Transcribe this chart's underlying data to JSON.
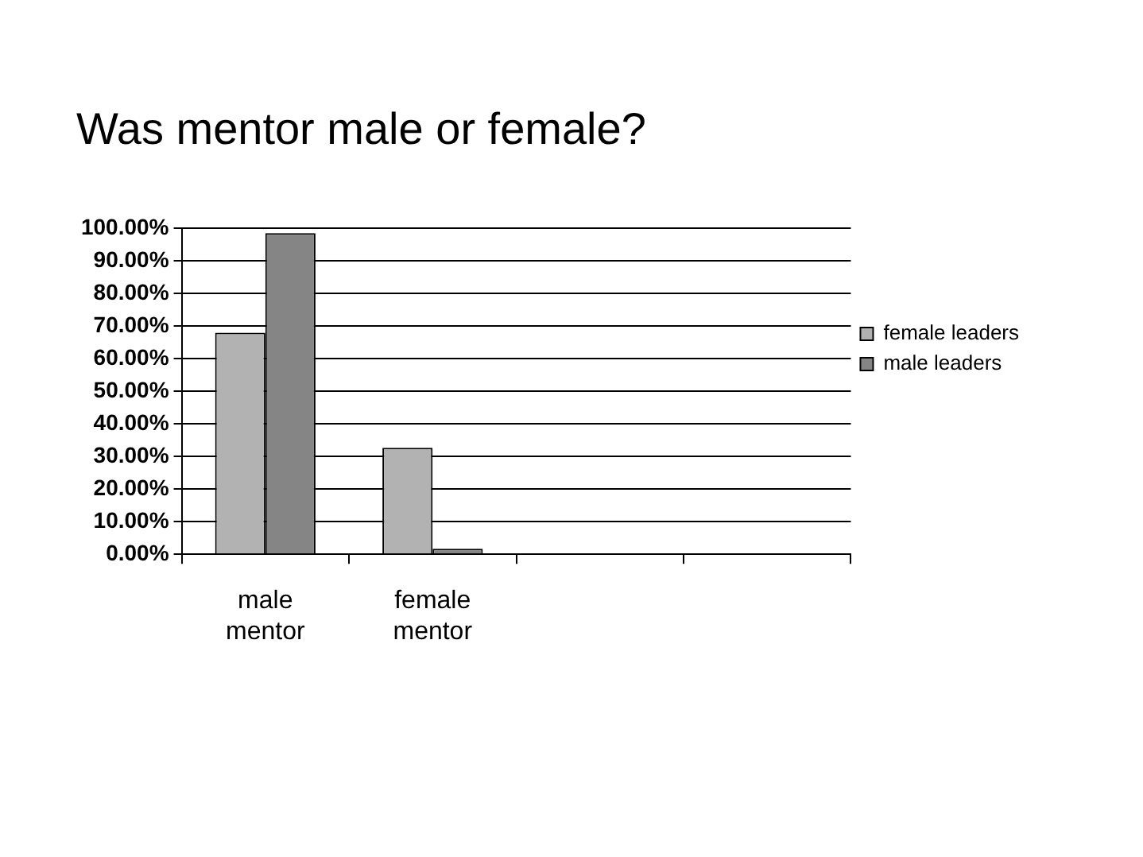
{
  "chart_data": {
    "type": "bar",
    "title": "Was mentor male or female?",
    "categories": [
      "male mentor",
      "female mentor",
      null,
      null
    ],
    "series": [
      {
        "name": "female leaders",
        "color": "#b2b2b2",
        "values": [
          68,
          32.7,
          null,
          null
        ]
      },
      {
        "name": "male leaders",
        "color": "#858585",
        "values": [
          98.5,
          1.7,
          null,
          null
        ]
      }
    ],
    "ylim": [
      0,
      100
    ],
    "yticks": [
      {
        "value": 0,
        "label": "0.00%"
      },
      {
        "value": 10,
        "label": "10.00%"
      },
      {
        "value": 20,
        "label": "20.00%"
      },
      {
        "value": 30,
        "label": "30.00%"
      },
      {
        "value": 40,
        "label": "40.00%"
      },
      {
        "value": 50,
        "label": "50.00%"
      },
      {
        "value": 60,
        "label": "60.00%"
      },
      {
        "value": 70,
        "label": "70.00%"
      },
      {
        "value": 80,
        "label": "80.00%"
      },
      {
        "value": 90,
        "label": "90.00%"
      },
      {
        "value": 100,
        "label": "100.00%"
      }
    ],
    "grid": "y",
    "legend": "right"
  }
}
